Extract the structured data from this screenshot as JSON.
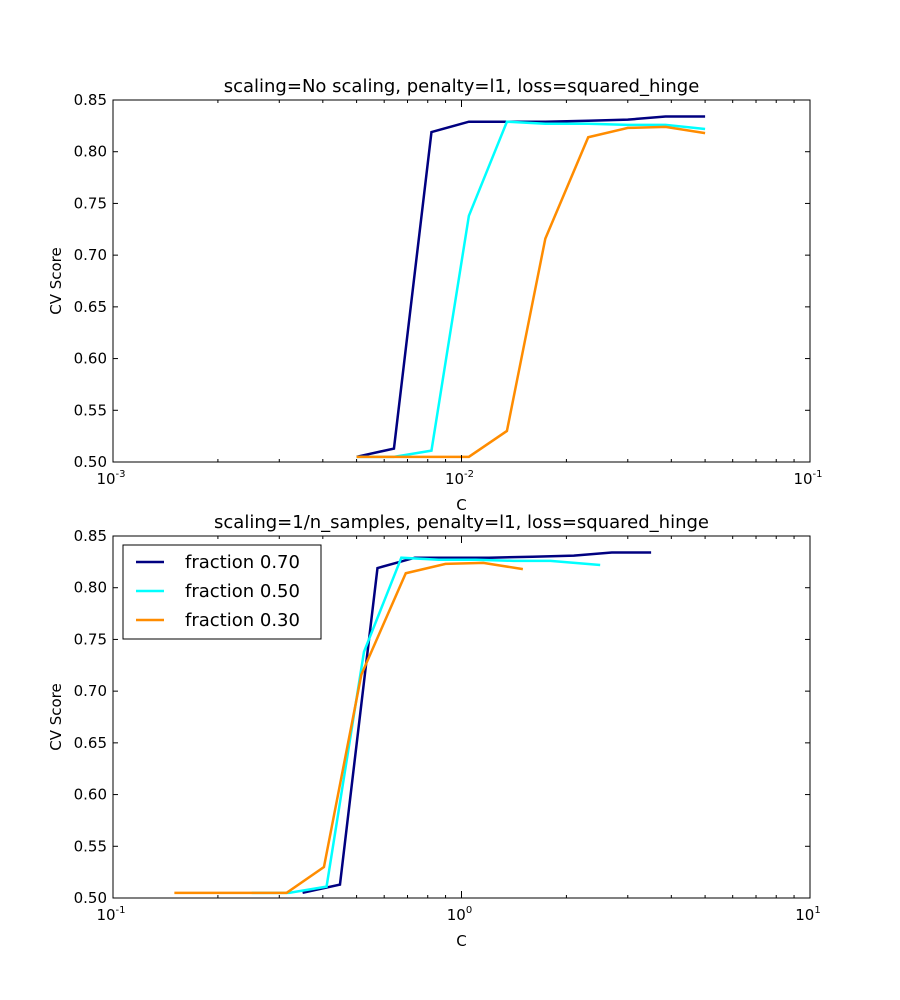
{
  "chart_data": [
    {
      "type": "line",
      "title": "scaling=No scaling, penalty=l1, loss=squared_hinge",
      "xlabel": "C",
      "ylabel": "CV Score",
      "xscale": "log",
      "xlim": [
        0.001,
        0.1
      ],
      "ylim": [
        0.5,
        0.85
      ],
      "grid": false,
      "legend": "none",
      "x_ticks": [
        {
          "base": "10",
          "exp": "-3",
          "value": 0.001
        },
        {
          "base": "10",
          "exp": "-2",
          "value": 0.01
        },
        {
          "base": "10",
          "exp": "-1",
          "value": 0.1
        }
      ],
      "y_ticks": [
        "0.50",
        "0.55",
        "0.60",
        "0.65",
        "0.70",
        "0.75",
        "0.80",
        "0.85"
      ],
      "series": [
        {
          "name": "fraction 0.70",
          "color": "#000080",
          "x": [
            0.005,
            0.0064,
            0.0082,
            0.0105,
            0.0135,
            0.0174,
            0.0231,
            0.03,
            0.0385,
            0.05
          ],
          "y": [
            0.505,
            0.513,
            0.819,
            0.829,
            0.829,
            0.829,
            0.83,
            0.831,
            0.834,
            0.834
          ]
        },
        {
          "name": "fraction 0.50",
          "color": "#00ffff",
          "x": [
            0.005,
            0.0064,
            0.0082,
            0.0105,
            0.0135,
            0.0174,
            0.0231,
            0.03,
            0.0385,
            0.05
          ],
          "y": [
            0.505,
            0.505,
            0.511,
            0.738,
            0.829,
            0.827,
            0.827,
            0.826,
            0.826,
            0.822
          ]
        },
        {
          "name": "fraction 0.30",
          "color": "#ff8c00",
          "x": [
            0.005,
            0.0064,
            0.0082,
            0.0105,
            0.0135,
            0.0174,
            0.0231,
            0.03,
            0.0385,
            0.05
          ],
          "y": [
            0.505,
            0.505,
            0.505,
            0.505,
            0.53,
            0.716,
            0.814,
            0.823,
            0.824,
            0.818
          ]
        }
      ]
    },
    {
      "type": "line",
      "title": "scaling=1/n_samples, penalty=l1, loss=squared_hinge",
      "xlabel": "C",
      "ylabel": "CV Score",
      "xscale": "log",
      "xlim": [
        0.1,
        10
      ],
      "ylim": [
        0.5,
        0.85
      ],
      "grid": false,
      "legend": "top-left",
      "x_ticks": [
        {
          "base": "10",
          "exp": "-1",
          "value": 0.1
        },
        {
          "base": "10",
          "exp": "0",
          "value": 1
        },
        {
          "base": "10",
          "exp": "1",
          "value": 10
        }
      ],
      "y_ticks": [
        "0.50",
        "0.55",
        "0.60",
        "0.65",
        "0.70",
        "0.75",
        "0.80",
        "0.85"
      ],
      "series": [
        {
          "name": "fraction 0.70",
          "color": "#000080",
          "x": [
            0.35,
            0.448,
            0.574,
            0.735,
            0.941,
            1.2,
            1.6,
            2.1,
            2.7,
            3.5
          ],
          "y": [
            0.505,
            0.513,
            0.819,
            0.829,
            0.829,
            0.829,
            0.83,
            0.831,
            0.834,
            0.834
          ]
        },
        {
          "name": "fraction 0.50",
          "color": "#00ffff",
          "x": [
            0.25,
            0.32,
            0.41,
            0.525,
            0.672,
            0.86,
            1.1,
            1.41,
            1.8,
            2.5
          ],
          "y": [
            0.505,
            0.505,
            0.511,
            0.738,
            0.829,
            0.827,
            0.827,
            0.826,
            0.826,
            0.822
          ]
        },
        {
          "name": "fraction 0.30",
          "color": "#ff8c00",
          "x": [
            0.15,
            0.192,
            0.246,
            0.315,
            0.403,
            0.516,
            0.692,
            0.9,
            1.155,
            1.5
          ],
          "y": [
            0.505,
            0.505,
            0.505,
            0.505,
            0.53,
            0.716,
            0.814,
            0.823,
            0.824,
            0.818
          ]
        }
      ]
    }
  ]
}
